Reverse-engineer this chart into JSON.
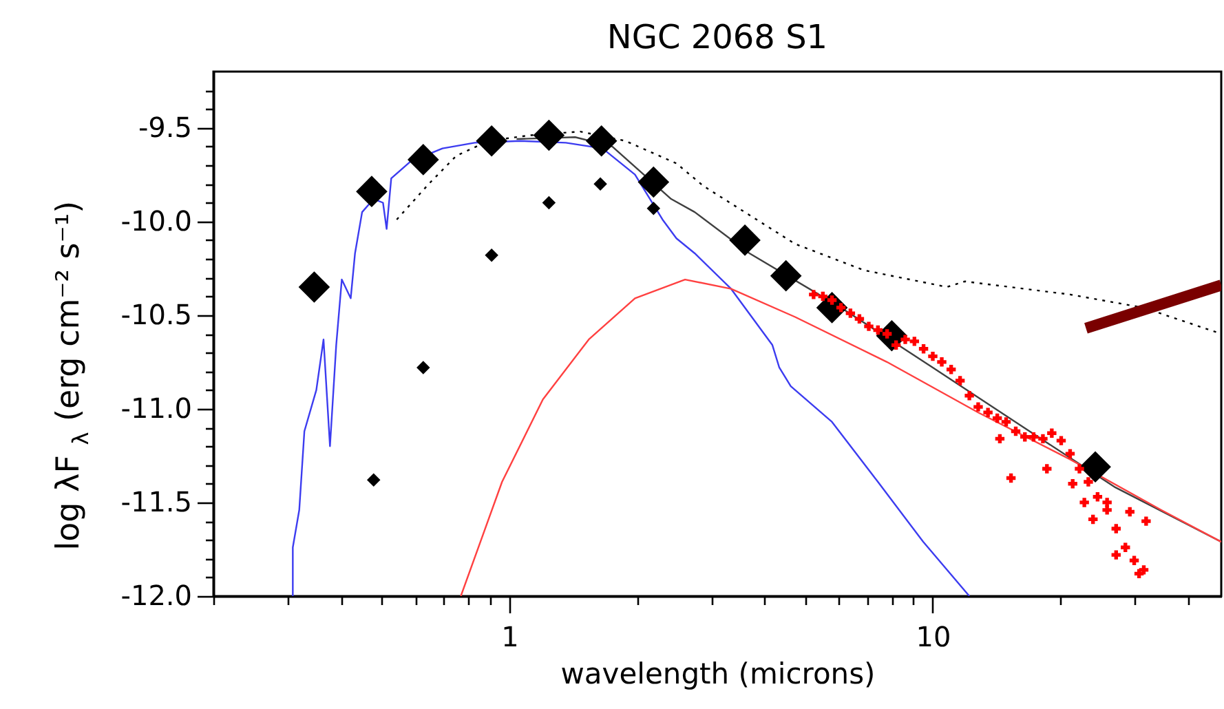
{
  "chart_data": {
    "type": "line",
    "title": "NGC 2068 S1",
    "xlabel": "wavelength (microns)",
    "ylabel": "log λF$_{λ}$ (erg cm⁻² s⁻¹)",
    "log": "x",
    "grid": false,
    "xlim": [
      0.2,
      48
    ],
    "ylim": [
      -12.0,
      -9.2
    ],
    "xticks": [
      {
        "value": 0.2,
        "label": null
      },
      {
        "value": 0.3,
        "label": null
      },
      {
        "value": 0.4,
        "label": null
      },
      {
        "value": 0.5,
        "label": null
      },
      {
        "value": 0.6,
        "label": null
      },
      {
        "value": 0.7,
        "label": null
      },
      {
        "value": 0.8,
        "label": null
      },
      {
        "value": 0.9,
        "label": null
      },
      1,
      {
        "value": 2,
        "label": null
      },
      {
        "value": 3,
        "label": null
      },
      {
        "value": 4,
        "label": null
      },
      {
        "value": 5,
        "label": null
      },
      {
        "value": 6,
        "label": null
      },
      {
        "value": 7,
        "label": null
      },
      {
        "value": 8,
        "label": null
      },
      {
        "value": 9,
        "label": null
      },
      10,
      {
        "value": 20,
        "label": null
      },
      {
        "value": 30,
        "label": null
      },
      {
        "value": 40,
        "label": null
      }
    ],
    "yticks": [
      {
        "value": -12.0,
        "label": "-12.0"
      },
      {
        "value": -11.9,
        "label": null
      },
      {
        "value": -11.8,
        "label": null
      },
      {
        "value": -11.7,
        "label": null
      },
      {
        "value": -11.6,
        "label": null
      },
      {
        "value": -11.5,
        "label": "-11.5"
      },
      {
        "value": -11.4,
        "label": null
      },
      {
        "value": -11.3,
        "label": null
      },
      {
        "value": -11.2,
        "label": null
      },
      {
        "value": -11.1,
        "label": null
      },
      {
        "value": -11.0,
        "label": "-11.0"
      },
      {
        "value": -10.9,
        "label": null
      },
      {
        "value": -10.8,
        "label": null
      },
      {
        "value": -10.7,
        "label": null
      },
      {
        "value": -10.6,
        "label": null
      },
      {
        "value": -10.5,
        "label": "-10.5"
      },
      {
        "value": -10.4,
        "label": null
      },
      {
        "value": -10.3,
        "label": null
      },
      {
        "value": -10.2,
        "label": null
      },
      {
        "value": -10.1,
        "label": null
      },
      {
        "value": -10.0,
        "label": "-10.0"
      },
      {
        "value": -9.9,
        "label": null
      },
      {
        "value": -9.8,
        "label": null
      },
      {
        "value": -9.7,
        "label": null
      },
      {
        "value": -9.6,
        "label": null
      },
      {
        "value": -9.5,
        "label": "-9.5"
      },
      {
        "value": -9.4,
        "label": null
      },
      {
        "value": -9.3,
        "label": null
      }
    ],
    "series": [
      {
        "color": "#3c3cf0",
        "line_style": "solid",
        "x": [
          0.308,
          0.308,
          0.319,
          0.328,
          0.35,
          0.364,
          0.377,
          0.39,
          0.402,
          0.422,
          0.432,
          0.449,
          0.478,
          0.503,
          0.513,
          0.526,
          0.584,
          0.695,
          0.828,
          1.06,
          1.36,
          1.66,
          1.98,
          2.3,
          2.48,
          2.74,
          3.34,
          4.18,
          4.34,
          4.62,
          5.78,
          7.42,
          9.49,
          12.2
        ],
        "values": [
          -12.0,
          -11.74,
          -11.54,
          -11.12,
          -10.9,
          -10.63,
          -11.2,
          -10.66,
          -10.31,
          -10.41,
          -10.17,
          -9.95,
          -9.88,
          -9.9,
          -10.04,
          -9.77,
          -9.68,
          -9.61,
          -9.58,
          -9.57,
          -9.58,
          -9.61,
          -9.75,
          -9.99,
          -10.09,
          -10.17,
          -10.36,
          -10.66,
          -10.78,
          -10.88,
          -11.07,
          -11.39,
          -11.71,
          -12.0
        ]
      },
      {
        "color": "#000000",
        "line_style": "dotted",
        "x": [
          0.542,
          0.645,
          0.749,
          0.892,
          1.12,
          1.47,
          1.88,
          2.48,
          2.87,
          4.73,
          6.87,
          10.8,
          11.9,
          21.1,
          31.4,
          48
        ],
        "values": [
          -9.99,
          -9.8,
          -9.65,
          -9.57,
          -9.54,
          -9.52,
          -9.57,
          -9.69,
          -9.81,
          -10.12,
          -10.26,
          -10.35,
          -10.32,
          -10.39,
          -10.46,
          -10.6
        ]
      },
      {
        "color": "#404040",
        "line_style": "solid",
        "x": [
          1.04,
          1.43,
          1.75,
          2.41,
          2.74,
          3.69,
          6.07,
          10.0,
          16.4,
          27.0,
          48
        ],
        "values": [
          -9.56,
          -9.55,
          -9.6,
          -9.88,
          -9.95,
          -10.17,
          -10.46,
          -10.78,
          -11.1,
          -11.42,
          -11.71
        ]
      },
      {
        "color": "#ff4040",
        "line_style": "solid",
        "x": [
          0.768,
          0.961,
          1.2,
          1.54,
          1.98,
          2.6,
          3.34,
          4.73,
          7.79,
          12.8,
          21.1,
          34.6,
          48
        ],
        "values": [
          -12.0,
          -11.39,
          -10.95,
          -10.63,
          -10.41,
          -10.31,
          -10.36,
          -10.51,
          -10.75,
          -11.02,
          -11.27,
          -11.54,
          -11.71
        ]
      },
      {
        "color": "#7a0000",
        "line_style": "solid",
        "x": [
          23.0,
          48
        ],
        "values": [
          -10.57,
          -10.34
        ]
      },
      {
        "type": "scatter",
        "color": "#000000",
        "marker": "diamond",
        "x": [
          0.346,
          0.473,
          0.626,
          0.908,
          1.24,
          1.65,
          2.19,
          3.6,
          4.5,
          5.78,
          8.0,
          24.2
        ],
        "values": [
          -10.35,
          -9.84,
          -9.67,
          -9.57,
          -9.54,
          -9.57,
          -9.79,
          -10.1,
          -10.29,
          -10.46,
          -10.61,
          -11.31
        ]
      },
      {
        "type": "scatter",
        "color": "#000000",
        "marker": "diamond",
        "x": [
          0.478,
          0.626,
          0.908,
          1.24,
          1.64,
          2.19
        ],
        "values": [
          -11.38,
          -10.78,
          -10.18,
          -9.9,
          -9.8,
          -9.93
        ]
      },
      {
        "type": "scatter",
        "color": "#ff0000",
        "marker": "cross",
        "x": [
          5.23,
          5.5,
          5.78,
          6.07,
          6.39,
          6.71,
          7.06,
          7.42,
          7.8,
          8.19,
          8.61,
          9.05,
          9.51,
          10.0,
          10.5,
          11.05,
          11.6,
          12.2,
          12.8,
          13.5,
          14.2,
          14.9,
          15.7,
          16.5,
          17.3,
          18.2,
          19.1,
          20.1,
          21.1,
          22.2,
          23.3,
          24.5,
          25.8,
          27.1,
          28.5,
          29.9,
          31.5,
          15.3,
          18.6,
          21.4,
          23.9,
          30.7,
          27.1,
          31.9,
          29.2,
          25.8,
          22.8,
          14.4
        ],
        "values": [
          -10.39,
          -10.4,
          -10.42,
          -10.46,
          -10.49,
          -10.52,
          -10.56,
          -10.58,
          -10.6,
          -10.66,
          -10.63,
          -10.64,
          -10.68,
          -10.72,
          -10.75,
          -10.79,
          -10.85,
          -10.93,
          -10.99,
          -11.02,
          -11.05,
          -11.07,
          -11.12,
          -11.15,
          -11.15,
          -11.16,
          -11.13,
          -11.17,
          -11.24,
          -11.32,
          -11.39,
          -11.47,
          -11.54,
          -11.64,
          -11.74,
          -11.81,
          -11.86,
          -11.37,
          -11.32,
          -11.4,
          -11.59,
          -11.88,
          -11.78,
          -11.6,
          -11.55,
          -11.5,
          -11.5,
          -11.16
        ]
      }
    ]
  }
}
